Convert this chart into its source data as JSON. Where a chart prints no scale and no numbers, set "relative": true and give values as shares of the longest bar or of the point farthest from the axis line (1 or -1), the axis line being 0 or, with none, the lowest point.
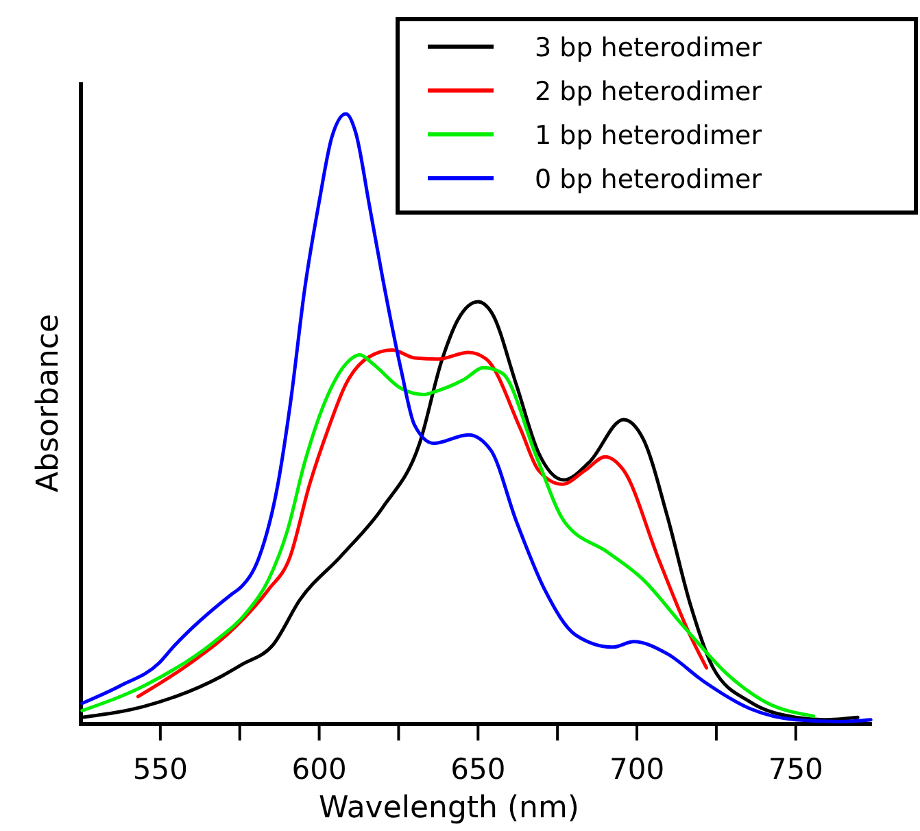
{
  "chart_data": {
    "type": "line",
    "xlabel": "Wavelength (nm)",
    "ylabel": "Absorbance",
    "relative": true,
    "xlim": [
      525,
      774
    ],
    "xticks": [
      550,
      {
        "value": 575,
        "label": null
      },
      600,
      {
        "value": 625,
        "label": null
      },
      650,
      {
        "value": 675,
        "label": null
      },
      700,
      {
        "value": 725,
        "label": null
      },
      750
    ],
    "legend": "top right",
    "line_style": "solid",
    "series": [
      {
        "name": "3 bp heterodimer",
        "color": "#000000",
        "x": [
          525.4,
          545,
          569.5,
          575.5,
          585.5,
          594,
          607,
          620,
          631.6,
          638.6,
          643.7,
          650,
          654.3,
          662,
          669,
          677,
          685,
          695.8,
          702,
          709.6,
          716.7,
          724,
          735.7,
          750,
          758.7,
          769.5
        ],
        "values": [
          0.011,
          0.029,
          0.079,
          0.097,
          0.13,
          0.204,
          0.276,
          0.355,
          0.46,
          0.596,
          0.663,
          0.692,
          0.674,
          0.557,
          0.445,
          0.4,
          0.429,
          0.499,
          0.467,
          0.34,
          0.198,
          0.092,
          0.036,
          0.011,
          0.007,
          0.011
        ]
      },
      {
        "name": "2 bp heterodimer",
        "color": "#ff0000",
        "x": [
          543,
          559.5,
          573.8,
          584,
          590.7,
          597,
          602.8,
          608.4,
          615.8,
          623,
          630,
          637.4,
          647,
          652.6,
          663.4,
          669,
          676.4,
          683.8,
          690,
          695.8,
          706.7,
          716.7,
          721.9
        ],
        "values": [
          0.045,
          0.1,
          0.16,
          0.22,
          0.272,
          0.393,
          0.483,
          0.557,
          0.602,
          0.613,
          0.6,
          0.598,
          0.609,
          0.598,
          0.483,
          0.416,
          0.393,
          0.416,
          0.438,
          0.416,
          0.272,
          0.146,
          0.092
        ]
      },
      {
        "name": "1 bp heterodimer",
        "color": "#00ee00",
        "x": [
          525.4,
          545,
          567,
          577,
          584,
          590,
          595.5,
          602.8,
          608.4,
          612.8,
          617,
          625.8,
          633,
          636,
          645.4,
          651.8,
          657.6,
          668.4,
          677,
          691,
          701.7,
          714.7,
          729,
          740.5,
          755.6
        ],
        "values": [
          0.022,
          0.063,
          0.135,
          0.182,
          0.236,
          0.317,
          0.43,
          0.54,
          0.59,
          0.605,
          0.59,
          0.55,
          0.54,
          0.544,
          0.564,
          0.584,
          0.575,
          0.438,
          0.333,
          0.281,
          0.238,
          0.16,
          0.079,
          0.036,
          0.013
        ]
      },
      {
        "name": "0 bp heterodimer",
        "color": "#0000ff",
        "x": [
          525.4,
          537.5,
          549.6,
          554,
          572.5,
          575.5,
          581,
          587,
          591,
          595.5,
          600,
          604,
          608.4,
          611.5,
          615.8,
          620,
          625.8,
          630,
          636,
          647,
          654,
          662,
          671,
          680.7,
          692.4,
          699,
          709.6,
          721,
          735.7,
          750,
          764,
          773.6
        ],
        "values": [
          0.034,
          0.063,
          0.1,
          0.126,
          0.213,
          0.225,
          0.272,
          0.393,
          0.528,
          0.715,
          0.856,
          0.962,
          1,
          0.969,
          0.85,
          0.73,
          0.58,
          0.49,
          0.46,
          0.474,
          0.449,
          0.333,
          0.22,
          0.146,
          0.126,
          0.135,
          0.115,
          0.07,
          0.025,
          0.007,
          0.004,
          0.007
        ]
      }
    ]
  }
}
